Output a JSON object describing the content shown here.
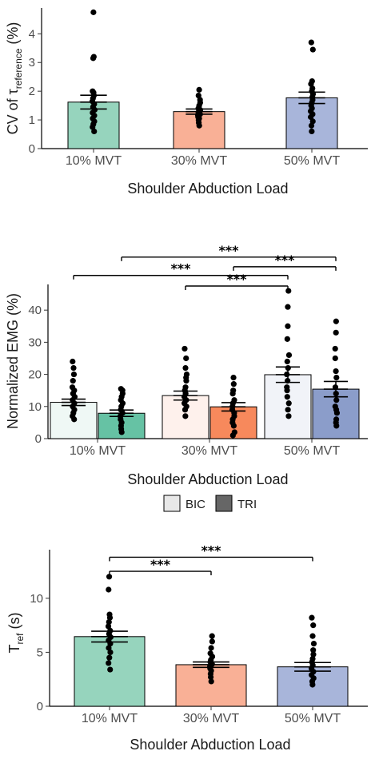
{
  "chart_data": [
    {
      "type": "bar",
      "ylabel_main": "CV of τ",
      "ylabel_sub": "reference",
      "ylabel_unit": " (%)",
      "xlabel": "Shoulder Abduction Load",
      "categories": [
        "10% MVT",
        "30% MVT",
        "50% MVT"
      ],
      "ylim": [
        0,
        4.9
      ],
      "yticks": [
        0,
        1,
        2,
        3,
        4
      ],
      "values": [
        1.62,
        1.29,
        1.77
      ],
      "errors": [
        0.24,
        0.09,
        0.2
      ],
      "colors": [
        "#96d4bd",
        "#f9b096",
        "#a8b5da"
      ],
      "points": [
        [
          0.6,
          0.75,
          0.85,
          0.95,
          1.05,
          1.15,
          1.25,
          1.35,
          1.45,
          1.55,
          1.65,
          1.75,
          1.85,
          1.95,
          2.0,
          3.15,
          3.2,
          4.75
        ],
        [
          0.8,
          0.9,
          1.0,
          1.05,
          1.1,
          1.15,
          1.2,
          1.25,
          1.3,
          1.35,
          1.4,
          1.5,
          1.6,
          1.7,
          1.85,
          2.05
        ],
        [
          0.6,
          0.8,
          0.95,
          1.1,
          1.2,
          1.3,
          1.4,
          1.5,
          1.6,
          1.7,
          1.8,
          1.9,
          2.0,
          2.1,
          2.25,
          2.35,
          3.45,
          3.7
        ]
      ],
      "significance": []
    },
    {
      "type": "bar",
      "ylabel": "Normalized EMG (%)",
      "xlabel": "Shoulder Abduction Load",
      "categories": [
        "10% MVT",
        "30% MVT",
        "50% MVT"
      ],
      "ylim": [
        0,
        48
      ],
      "yticks": [
        0,
        10,
        20,
        30,
        40
      ],
      "legend": [
        "BIC",
        "TRI"
      ],
      "legend_colors": [
        "#e8e8e8",
        "#666666"
      ],
      "series": [
        {
          "name": "BIC",
          "values": [
            11.3,
            13.4,
            19.9
          ],
          "errors": [
            1.0,
            1.4,
            2.4
          ],
          "colors": [
            "#eff8f5",
            "#fef1ec",
            "#f1f3f8"
          ],
          "points": [
            [
              6,
              7,
              8,
              9,
              10,
              11,
              12,
              13,
              14,
              15,
              16,
              18,
              20,
              22,
              24
            ],
            [
              7,
              9,
              10,
              11,
              12,
              13,
              14,
              15,
              16,
              18,
              19,
              20,
              22,
              25,
              28
            ],
            [
              7,
              9,
              11,
              13,
              15,
              16,
              18,
              20,
              22,
              24,
              26,
              31,
              35,
              41,
              46
            ]
          ]
        },
        {
          "name": "TRI",
          "values": [
            7.9,
            9.9,
            15.4
          ],
          "errors": [
            1.0,
            1.3,
            2.4
          ],
          "colors": [
            "#66c2a4",
            "#f7895c",
            "#8b9dca"
          ],
          "points": [
            [
              2,
              3,
              4,
              5,
              6,
              7,
              8,
              9,
              10,
              11,
              12,
              13,
              14,
              15,
              15.5
            ],
            [
              1,
              2,
              4,
              5,
              6,
              7,
              8,
              9,
              10,
              11,
              12,
              14,
              15,
              17,
              19
            ],
            [
              4,
              5,
              6,
              8,
              9,
              10,
              12,
              14,
              16,
              19,
              21,
              25,
              28,
              33,
              36.5
            ]
          ]
        }
      ],
      "significance": [
        {
          "from": [
            0,
            0
          ],
          "to": [
            2,
            0
          ],
          "label": "***",
          "y": 50.8
        },
        {
          "from": [
            1,
            0
          ],
          "to": [
            2,
            0
          ],
          "label": "***",
          "y": 47.5
        },
        {
          "from": [
            0,
            1
          ],
          "to": [
            2,
            1
          ],
          "label": "***",
          "y": 56.5
        },
        {
          "from": [
            1,
            1
          ],
          "to": [
            2,
            1
          ],
          "label": "***",
          "y": 53.5
        }
      ]
    },
    {
      "type": "bar",
      "ylabel_main": "T",
      "ylabel_sub": "ref",
      "ylabel_unit": " (s)",
      "xlabel": "Shoulder Abduction Load",
      "categories": [
        "10% MVT",
        "30% MVT",
        "50% MVT"
      ],
      "ylim": [
        0,
        14.5
      ],
      "yticks": [
        0,
        5,
        10
      ],
      "values": [
        6.45,
        3.85,
        3.65
      ],
      "errors": [
        0.5,
        0.25,
        0.4
      ],
      "colors": [
        "#96d4bd",
        "#f9b096",
        "#a8b5da"
      ],
      "points": [
        [
          3.4,
          4.0,
          4.5,
          5.0,
          5.4,
          5.8,
          6.1,
          6.4,
          6.7,
          7.0,
          7.4,
          7.8,
          8.2,
          8.5,
          10.8,
          12.0
        ],
        [
          2.3,
          2.7,
          3.0,
          3.3,
          3.5,
          3.7,
          3.9,
          4.1,
          4.3,
          4.6,
          4.9,
          5.4,
          6.0,
          6.5
        ],
        [
          2.0,
          2.3,
          2.6,
          2.9,
          3.2,
          3.5,
          3.8,
          4.1,
          4.4,
          4.8,
          5.2,
          5.8,
          6.5,
          7.5,
          8.2
        ]
      ],
      "significance": [
        {
          "from": 0,
          "to": 1,
          "label": "***",
          "y": 12.5
        },
        {
          "from": 0,
          "to": 2,
          "label": "***",
          "y": 13.8
        }
      ]
    }
  ]
}
